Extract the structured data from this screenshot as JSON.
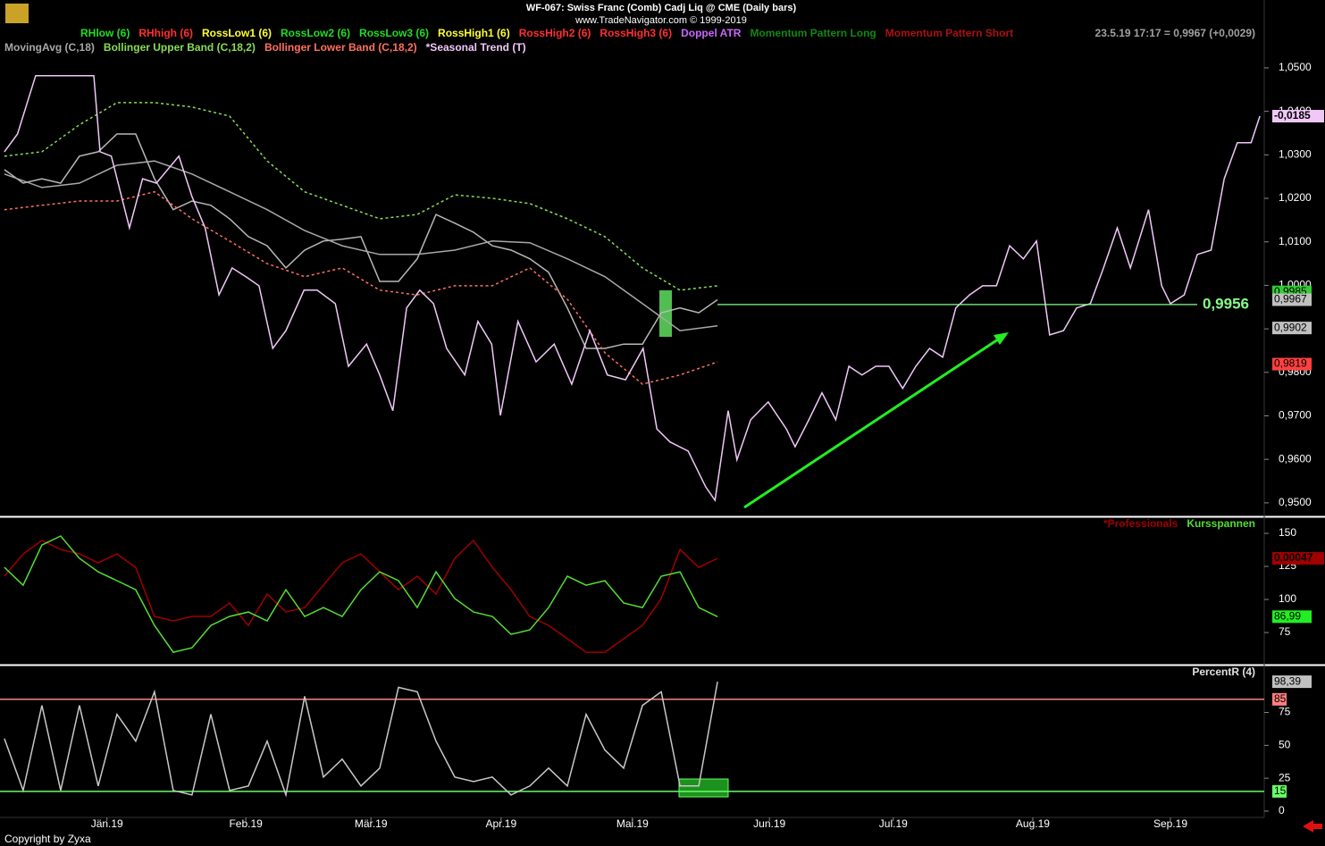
{
  "chart_data": [
    {
      "type": "line",
      "title": "WF-067:  Swiss Franc (Comb) Cadj Liq @ CME  (Daily bars)",
      "subtitle": "www.TradeNavigator.com © 1999-2019",
      "indicator_legend": [
        {
          "label": "RHlow (6)",
          "color": "#22dd22"
        },
        {
          "label": "RHhigh (6)",
          "color": "#ff3030"
        },
        {
          "label": "RossLow1 (6)",
          "color": "#ffff33"
        },
        {
          "label": "RossLow2 (6)",
          "color": "#22dd22"
        },
        {
          "label": "RossLow3 (6)",
          "color": "#22dd22"
        },
        {
          "label": "RossHigh1 (6)",
          "color": "#ffff33"
        },
        {
          "label": "RossHigh2 (6)",
          "color": "#ff3030"
        },
        {
          "label": "RossHigh3 (6)",
          "color": "#ff3030"
        },
        {
          "label": "Doppel ATR",
          "color": "#cc66ff"
        },
        {
          "label": "Momentum Pattern Long",
          "color": "#118811"
        },
        {
          "label": "Momentum Pattern Short",
          "color": "#aa1111"
        }
      ],
      "quote": "23.5.19 17:17 = 0,9967 (+0,0029)",
      "xlim": [
        -0.7,
        201.4
      ],
      "ylim": [
        0.9471,
        1.0656
      ],
      "yticks": [
        {
          "value": 1.05,
          "label": "1,0500"
        },
        {
          "value": 1.04,
          "label": "1,0400"
        },
        {
          "value": 1.03,
          "label": "1,0300"
        },
        {
          "value": 1.02,
          "label": "1,0200"
        },
        {
          "value": 1.01,
          "label": "1,0100"
        },
        {
          "value": 1.0,
          "label": "1,0000"
        },
        {
          "value": 0.99,
          "label": "0,9900"
        },
        {
          "value": 0.98,
          "label": "0,9800"
        },
        {
          "value": 0.97,
          "label": "0,9700"
        },
        {
          "value": 0.96,
          "label": "0,9600"
        },
        {
          "value": 0.95,
          "label": "0,9500"
        }
      ],
      "series": [
        {
          "color": "#b8b8b8",
          "dash": false,
          "x": [
            0,
            3,
            6,
            9,
            12,
            15,
            18,
            21,
            24,
            27,
            30,
            33,
            36,
            39,
            42,
            45,
            48,
            51,
            54,
            57,
            60,
            63,
            66,
            69,
            72,
            75,
            78,
            81,
            84,
            87,
            90,
            93,
            96,
            99,
            102,
            105,
            108,
            111,
            114
          ],
          "values": [
            1.0266,
            1.0235,
            1.0245,
            1.0235,
            1.0297,
            1.0307,
            1.0348,
            1.0348,
            1.0245,
            1.0174,
            1.0194,
            1.0184,
            1.0153,
            1.0112,
            1.0091,
            1.004,
            1.0081,
            1.0102,
            1.0106,
            1.0112,
            1.0009,
            1.0009,
            1.0061,
            1.0163,
            1.0143,
            1.0122,
            1.0091,
            1.0081,
            1.0061,
            1.003,
            0.9948,
            0.9855,
            0.9855,
            0.9865,
            0.9865,
            0.9937,
            0.9948,
            0.9937,
            0.9967
          ]
        },
        {
          "name": "MovingAvg (C,18)",
          "color": "#a8a8a8",
          "dash": false,
          "x": [
            0,
            6,
            12,
            18,
            24,
            30,
            36,
            42,
            48,
            54,
            60,
            66,
            72,
            78,
            84,
            90,
            96,
            102,
            108,
            114
          ],
          "values": [
            1.0256,
            1.0225,
            1.0235,
            1.0276,
            1.0286,
            1.0256,
            1.0215,
            1.0174,
            1.0126,
            1.0091,
            1.0071,
            1.0071,
            1.0081,
            1.0102,
            1.0098,
            1.0061,
            1.002,
            0.9958,
            0.9896,
            0.9907
          ]
        },
        {
          "name": "Bollinger Upper Band (C,18,2)",
          "color": "#88dd55",
          "dash": true,
          "x": [
            0,
            6,
            12,
            18,
            24,
            30,
            36,
            42,
            48,
            54,
            60,
            66,
            72,
            78,
            84,
            90,
            96,
            102,
            108,
            114
          ],
          "values": [
            1.0297,
            1.0307,
            1.0369,
            1.042,
            1.042,
            1.041,
            1.0389,
            1.0286,
            1.0215,
            1.0184,
            1.0153,
            1.0163,
            1.0208,
            1.02,
            1.0188,
            1.0153,
            1.0112,
            1.004,
            0.9989,
            0.9999
          ]
        },
        {
          "name": "Bollinger Lower Band (C,18,2)",
          "color": "#ff7060",
          "dash": true,
          "x": [
            0,
            6,
            12,
            18,
            24,
            30,
            36,
            42,
            48,
            54,
            60,
            66,
            72,
            78,
            84,
            90,
            96,
            102,
            108,
            114
          ],
          "values": [
            1.0174,
            1.0184,
            1.0194,
            1.0194,
            1.0215,
            1.0153,
            1.0102,
            1.005,
            1.002,
            1.004,
            0.9989,
            0.9978,
            0.9999,
            0.9999,
            1.004,
            0.9968,
            0.9845,
            0.9773,
            0.9794,
            0.9824
          ]
        },
        {
          "name": "*Seasonal Trend (T)",
          "color": "#f0c8f8",
          "dash": false,
          "last_label": "-0,0185",
          "x": [
            0,
            2.1,
            5,
            14.3,
            15.3,
            17.1,
            20,
            22.1,
            24.3,
            27.9,
            30,
            32.1,
            34.3,
            36.4,
            38.6,
            40.7,
            42.9,
            45,
            47.9,
            50,
            52.9,
            55,
            57.9,
            60,
            62.1,
            64.3,
            66.4,
            68.6,
            70.7,
            73.6,
            75.7,
            77.9,
            79.3,
            82.1,
            85,
            87.9,
            90.7,
            93.6,
            96.4,
            99.3,
            102.1,
            104.3,
            106.4,
            109.3,
            112.1,
            113.6,
            115.7,
            117.1,
            119.3,
            122.1,
            125,
            126.4,
            128.6,
            130.7,
            132.9,
            135,
            137.1,
            139.3,
            141.4,
            143.6,
            145.7,
            147.9,
            150,
            152.1,
            154.3,
            156.4,
            158.6,
            160.7,
            162.9,
            165,
            167.1,
            169.3,
            171.4,
            173.6,
            175.7,
            177.9,
            180,
            182.9,
            185,
            186.4,
            188.6,
            190.7,
            192.9,
            195,
            197.1,
            199.3,
            200.7
          ],
          "values": [
            1.0307,
            1.0348,
            1.0482,
            1.0482,
            1.0307,
            1.0297,
            1.0132,
            1.0245,
            1.0235,
            1.0297,
            1.0204,
            1.0132,
            0.9978,
            1.004,
            1.002,
            0.9999,
            0.9855,
            0.9896,
            0.9989,
            0.9989,
            0.9958,
            0.9814,
            0.9865,
            0.9794,
            0.9712,
            0.9948,
            0.9989,
            0.9958,
            0.9855,
            0.9794,
            0.9917,
            0.9865,
            0.9701,
            0.9917,
            0.9824,
            0.9865,
            0.9773,
            0.9896,
            0.9794,
            0.9783,
            0.9855,
            0.967,
            0.964,
            0.9619,
            0.9537,
            0.9506,
            0.9712,
            0.9599,
            0.9691,
            0.9732,
            0.967,
            0.9629,
            0.9691,
            0.9753,
            0.9691,
            0.9814,
            0.9794,
            0.9814,
            0.9814,
            0.9763,
            0.9814,
            0.9855,
            0.9835,
            0.9948,
            0.9978,
            0.9999,
            0.9999,
            1.0091,
            1.0061,
            1.0102,
            0.9886,
            0.9896,
            0.9948,
            0.9958,
            1.004,
            1.0132,
            1.004,
            1.0174,
            0.9999,
            0.9958,
            0.9978,
            1.0071,
            1.0081,
            1.0245,
            1.0328,
            1.0328,
            1.0389
          ]
        }
      ],
      "value_boxes": [
        {
          "value": 0.9985,
          "label": "0,9985",
          "color": "#33cc33"
        },
        {
          "value": 0.9967,
          "label": "0,9967",
          "color": "#c0c0c0"
        },
        {
          "value": 0.9902,
          "label": "0,9902",
          "color": "#c0c0c0"
        },
        {
          "value": 0.9819,
          "label": "0,9819",
          "color": "#ff4040"
        }
      ],
      "level": {
        "value": 0.9956,
        "label": "0,9956",
        "color": "#88ff88"
      }
    },
    {
      "type": "line",
      "xlim": [
        -0.7,
        201.4
      ],
      "ylim": [
        51.4,
        161.5
      ],
      "yticks": [
        150,
        125,
        100,
        75
      ],
      "series": [
        {
          "name": "*Professionals",
          "color": "#a00000",
          "dash": false,
          "last_label": "0,00047",
          "x": [
            0,
            3,
            6,
            9,
            12,
            15,
            18,
            21,
            24,
            27,
            30,
            33,
            36,
            39,
            42,
            45,
            48,
            51,
            54,
            57,
            60,
            63,
            66,
            69,
            72,
            75,
            78,
            81,
            84,
            87,
            90,
            93,
            96,
            99,
            102,
            105,
            108,
            111,
            114
          ],
          "values": [
            117.6,
            134.5,
            144.6,
            137.8,
            134.5,
            127.7,
            134.5,
            124.3,
            87.2,
            83.8,
            87.2,
            87.2,
            97.3,
            80.4,
            104.1,
            90.5,
            93.9,
            110.8,
            127.7,
            134.5,
            120.9,
            107.4,
            117.6,
            104.1,
            131.1,
            144.6,
            124.3,
            107.4,
            87.2,
            80.4,
            70.3,
            60.1,
            60.1,
            70.3,
            80.4,
            100.7,
            137.8,
            124.3,
            131.1
          ]
        },
        {
          "name": "Kursspannen",
          "color": "#55dd33",
          "dash": false,
          "x": [
            0,
            3,
            6,
            9,
            12,
            15,
            18,
            21,
            24,
            27,
            30,
            33,
            36,
            39,
            42,
            45,
            48,
            51,
            54,
            57,
            60,
            63,
            66,
            69,
            72,
            75,
            78,
            81,
            84,
            87,
            90,
            93,
            96,
            99,
            102,
            105,
            108,
            111,
            114
          ],
          "values": [
            124.3,
            110.8,
            141.2,
            148.0,
            131.1,
            120.9,
            114.2,
            107.4,
            80.4,
            60.1,
            63.5,
            80.4,
            87.2,
            90.5,
            83.8,
            107.4,
            87.2,
            93.9,
            87.2,
            107.4,
            120.9,
            114.2,
            93.9,
            120.9,
            100.7,
            90.5,
            87.2,
            73.6,
            77.0,
            93.9,
            117.6,
            110.8,
            114.2,
            97.3,
            93.9,
            117.6,
            120.9,
            93.9,
            87.0
          ]
        }
      ],
      "value_boxes": [
        {
          "value": 86.99,
          "label": "86,99",
          "color": "#22ee22"
        }
      ]
    },
    {
      "type": "line",
      "xlim": [
        -0.7,
        201.4
      ],
      "ylim": [
        -4.8,
        110
      ],
      "yticks": [
        75,
        50,
        25,
        0
      ],
      "xticks": [
        {
          "value": 16.4,
          "label": "Jän.19"
        },
        {
          "value": 38.6,
          "label": "Feb.19"
        },
        {
          "value": 58.6,
          "label": "Mär.19"
        },
        {
          "value": 79.4,
          "label": "Apr.19"
        },
        {
          "value": 100.4,
          "label": "Mai.19"
        },
        {
          "value": 122.3,
          "label": "Jun.19"
        },
        {
          "value": 142.1,
          "label": "Jul.19"
        },
        {
          "value": 164.4,
          "label": "Aug.19"
        },
        {
          "value": 186.4,
          "label": "Sep.19"
        }
      ],
      "hlines": [
        {
          "value": 85,
          "color": "#ff8080"
        },
        {
          "value": 15,
          "color": "#66ff66"
        }
      ],
      "series": [
        {
          "name": "PercentR (4)",
          "color": "#c8c8c8",
          "dash": false,
          "x": [
            0,
            3,
            6,
            9,
            12,
            15,
            18,
            21,
            24,
            27,
            30,
            33,
            36,
            39,
            42,
            45,
            48,
            51,
            54,
            57,
            60,
            63,
            66,
            69,
            72,
            75,
            78,
            81,
            84,
            87,
            90,
            93,
            96,
            99,
            102,
            105,
            108,
            111,
            114
          ],
          "values": [
            55.2,
            15.7,
            80.4,
            15.7,
            80.4,
            19.1,
            73.6,
            53.2,
            90.7,
            15.7,
            12.3,
            73.6,
            15.7,
            19.1,
            53.2,
            12.3,
            87.3,
            25.9,
            39.5,
            19.1,
            32.7,
            94.1,
            90.7,
            53.2,
            25.9,
            22.5,
            25.9,
            12.3,
            19.1,
            32.7,
            19.1,
            73.6,
            46.4,
            32.7,
            80.4,
            90.7,
            19.1,
            19.1,
            98.39
          ]
        }
      ],
      "value_boxes": [
        {
          "value": 98.39,
          "label": "98,39",
          "color": "#c0c0c0"
        }
      ]
    }
  ]
}
